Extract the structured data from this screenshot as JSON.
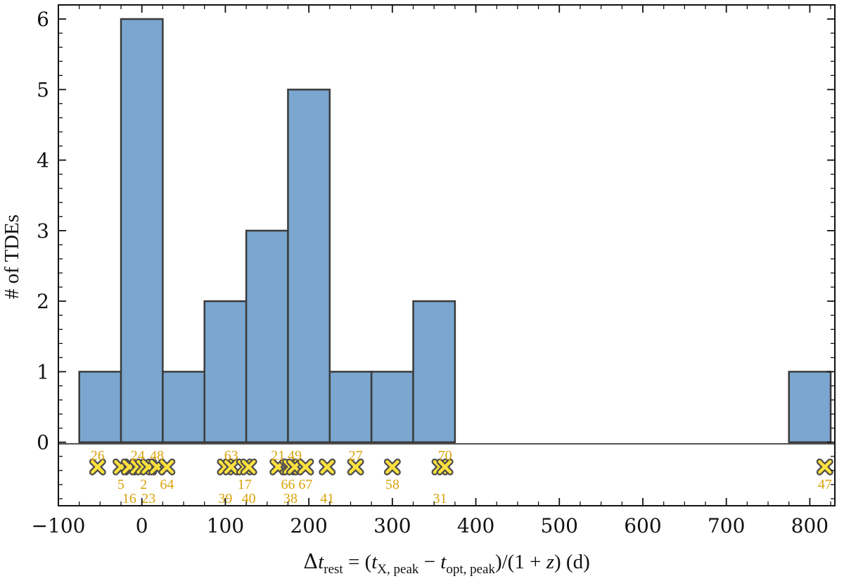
{
  "colors": {
    "bar_fill": "#7aa6cf",
    "bar_edge": "#3b3b3b",
    "marker_fill": "#ffe13d",
    "marker_edge": "#4d4d4d",
    "label": "#d9a20b"
  },
  "chart_data": {
    "type": "bar",
    "subtype": "histogram",
    "title": "",
    "xlabel": "Δt_rest = (t_X, peak − t_opt, peak)/(1 + z) (d)",
    "ylabel": "# of TDEs",
    "xlim": [
      -100,
      830
    ],
    "ylim": [
      -0.9,
      6.2
    ],
    "xticks": [
      -100,
      0,
      100,
      200,
      300,
      400,
      500,
      600,
      700,
      800
    ],
    "xtick_labels": [
      "−100",
      "0",
      "100",
      "200",
      "300",
      "400",
      "500",
      "600",
      "700",
      "800"
    ],
    "yticks": [
      0,
      1,
      2,
      3,
      4,
      5,
      6
    ],
    "ytick_labels": [
      "0",
      "1",
      "2",
      "3",
      "4",
      "5",
      "6"
    ],
    "bin_width": 50,
    "bins": [
      {
        "start": -75,
        "end": -25,
        "count": 1
      },
      {
        "start": -25,
        "end": 25,
        "count": 6
      },
      {
        "start": 25,
        "end": 75,
        "count": 1
      },
      {
        "start": 75,
        "end": 125,
        "count": 2
      },
      {
        "start": 125,
        "end": 175,
        "count": 3
      },
      {
        "start": 175,
        "end": 225,
        "count": 5
      },
      {
        "start": 225,
        "end": 275,
        "count": 1
      },
      {
        "start": 275,
        "end": 325,
        "count": 1
      },
      {
        "start": 325,
        "end": 375,
        "count": 2
      },
      {
        "start": 375,
        "end": 425,
        "count": 0
      },
      {
        "start": 425,
        "end": 475,
        "count": 0
      },
      {
        "start": 475,
        "end": 525,
        "count": 0
      },
      {
        "start": 525,
        "end": 575,
        "count": 0
      },
      {
        "start": 575,
        "end": 625,
        "count": 0
      },
      {
        "start": 625,
        "end": 675,
        "count": 0
      },
      {
        "start": 675,
        "end": 725,
        "count": 0
      },
      {
        "start": 725,
        "end": 775,
        "count": 0
      },
      {
        "start": 775,
        "end": 825,
        "count": 1
      }
    ],
    "marker_y": -0.35,
    "tdes": [
      {
        "id": "26",
        "x": -53,
        "label_pos": "above"
      },
      {
        "id": "5",
        "x": -25,
        "label_pos": "below"
      },
      {
        "id": "16",
        "x": -15,
        "label_pos": "below2"
      },
      {
        "id": "24",
        "x": -5,
        "label_pos": "above"
      },
      {
        "id": "2",
        "x": 2,
        "label_pos": "below"
      },
      {
        "id": "23",
        "x": 8,
        "label_pos": "below2"
      },
      {
        "id": "48",
        "x": 18,
        "label_pos": "above"
      },
      {
        "id": "64",
        "x": 30,
        "label_pos": "below"
      },
      {
        "id": "39",
        "x": 100,
        "label_pos": "below2"
      },
      {
        "id": "63",
        "x": 107,
        "label_pos": "above"
      },
      {
        "id": "17",
        "x": 123,
        "label_pos": "below"
      },
      {
        "id": "40",
        "x": 128,
        "label_pos": "below2"
      },
      {
        "id": "21",
        "x": 163,
        "label_pos": "above"
      },
      {
        "id": "66",
        "x": 175,
        "label_pos": "below"
      },
      {
        "id": "38",
        "x": 178,
        "label_pos": "below2"
      },
      {
        "id": "49",
        "x": 183,
        "label_pos": "above"
      },
      {
        "id": "67",
        "x": 196,
        "label_pos": "below"
      },
      {
        "id": "41",
        "x": 222,
        "label_pos": "below2"
      },
      {
        "id": "27",
        "x": 256,
        "label_pos": "above"
      },
      {
        "id": "58",
        "x": 300,
        "label_pos": "below"
      },
      {
        "id": "31",
        "x": 357,
        "label_pos": "below2"
      },
      {
        "id": "70",
        "x": 363,
        "label_pos": "above"
      },
      {
        "id": "47",
        "x": 818,
        "label_pos": "below"
      }
    ]
  }
}
